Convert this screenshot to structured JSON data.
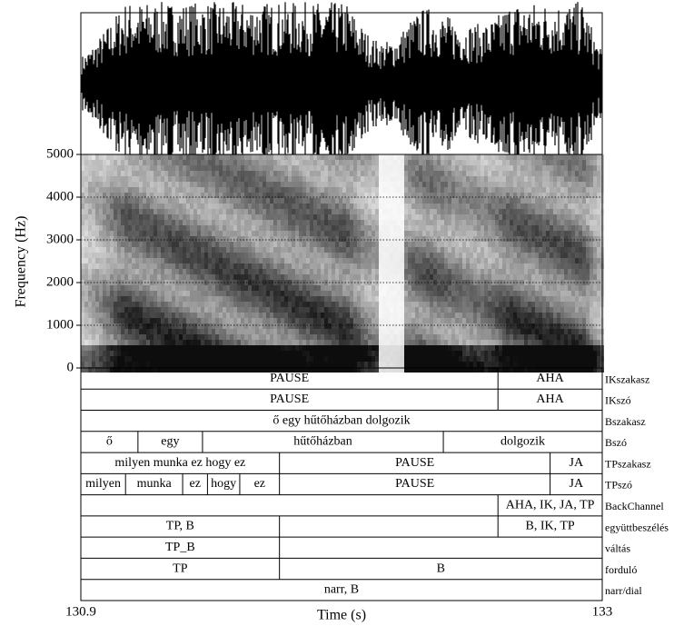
{
  "chart_data": {
    "type": "annotated-spectrogram",
    "xlabel": "Time (s)",
    "xlim": [
      130.9,
      133
    ],
    "xticks": [
      130.9,
      133
    ],
    "ylabel": "Frequency (Hz)",
    "ylim": [
      0,
      5000
    ],
    "yticks": [
      0,
      1000,
      2000,
      3000,
      4000,
      5000
    ],
    "grid": true,
    "tiers": [
      {
        "name": "IKszakasz",
        "boundaries": [
          132.58
        ],
        "labels": [
          "PAUSE",
          "AHA"
        ]
      },
      {
        "name": "IKszó",
        "boundaries": [
          132.58
        ],
        "labels": [
          "PAUSE",
          "AHA"
        ]
      },
      {
        "name": "Bszakasz",
        "boundaries": [],
        "labels": [
          "ő egy hűtőházban dolgozik"
        ]
      },
      {
        "name": "Bszó",
        "boundaries": [
          131.13,
          131.39,
          132.36
        ],
        "labels": [
          "ő",
          "egy",
          "hűtőházban",
          "dolgozik"
        ]
      },
      {
        "name": "TPszakasz",
        "boundaries": [
          131.7,
          132.79
        ],
        "labels": [
          "milyen munka ez hogy ez",
          "PAUSE",
          "JA"
        ]
      },
      {
        "name": "TPszó",
        "boundaries": [
          131.08,
          131.31,
          131.41,
          131.54,
          131.7,
          132.79
        ],
        "labels": [
          "milyen",
          "munka",
          "ez",
          "hogy",
          "ez",
          "PAUSE",
          "JA"
        ]
      },
      {
        "name": "BackChannel",
        "boundaries": [
          132.58
        ],
        "labels": [
          null,
          "AHA, IK, JA, TP"
        ]
      },
      {
        "name": "együttbeszélés",
        "boundaries": [
          131.7,
          132.58
        ],
        "labels": [
          "TP, B",
          null,
          "B, IK, TP"
        ]
      },
      {
        "name": "váltás",
        "boundaries": [
          131.7
        ],
        "labels": [
          "TP_B",
          null
        ]
      },
      {
        "name": "forduló",
        "boundaries": [
          131.7
        ],
        "labels": [
          "TP",
          "B"
        ]
      },
      {
        "name": "narr/dial",
        "boundaries": [],
        "labels": [
          "narr, B"
        ]
      }
    ]
  }
}
